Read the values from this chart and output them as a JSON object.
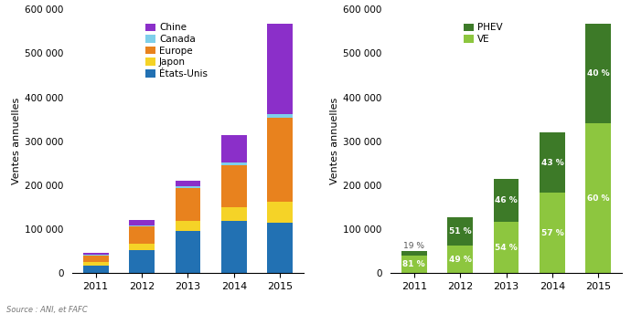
{
  "years": [
    2011,
    2012,
    2013,
    2014,
    2015
  ],
  "left": {
    "etats_unis": [
      18000,
      53000,
      97000,
      118000,
      115000
    ],
    "japon": [
      8000,
      13000,
      22000,
      33000,
      48000
    ],
    "europe": [
      14000,
      40000,
      75000,
      95000,
      190000
    ],
    "canada": [
      2000,
      3000,
      3000,
      5000,
      8000
    ],
    "chine": [
      5000,
      12000,
      13000,
      64000,
      207000
    ],
    "colors": {
      "etats_unis": "#2271b3",
      "japon": "#f5d327",
      "europe": "#e8821e",
      "canada": "#7ecfea",
      "chine": "#8b2fc9"
    },
    "labels": {
      "etats_unis": "États-Unis",
      "japon": "Japon",
      "europe": "Europe",
      "canada": "Canada",
      "chine": "Chine"
    },
    "ylabel": "Ventes annuelles",
    "ylim": [
      0,
      600000
    ]
  },
  "right": {
    "totals": [
      50000,
      128000,
      215000,
      320000,
      568000
    ],
    "ve_pct": [
      81,
      49,
      54,
      57,
      60
    ],
    "phev_pct": [
      19,
      51,
      46,
      43,
      40
    ],
    "color_ve": "#8dc63f",
    "color_phev": "#3d7a28",
    "label_ve": "VE",
    "label_phev": "PHEV",
    "ylabel": "Ventes annuelles",
    "ylim": [
      0,
      600000
    ]
  },
  "source": "Source : ANI, et FAFC"
}
